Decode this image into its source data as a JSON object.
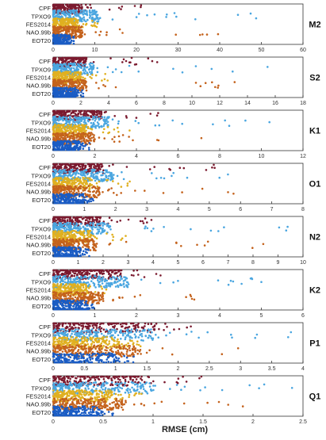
{
  "figure": {
    "xlabel": "RMSE (cm)"
  },
  "chart_data": [
    {
      "type": "scatter",
      "title": "M2",
      "xlim": [
        0,
        60
      ],
      "xticks": [
        0,
        10,
        20,
        30,
        40,
        50,
        60
      ],
      "categories": [
        "CPF",
        "TPXO9",
        "FES2014",
        "NAO.99b",
        "EOT20"
      ],
      "series": [
        {
          "name": "CPF",
          "color": "#7b1a2f",
          "core": [
            0,
            7
          ],
          "tail": [
            7,
            22
          ]
        },
        {
          "name": "TPXO9",
          "color": "#4aa6e0",
          "core": [
            0,
            11
          ],
          "tail": [
            11,
            51
          ]
        },
        {
          "name": "FES2014",
          "color": "#e0b020",
          "core": [
            0,
            6
          ],
          "tail": [
            6,
            12
          ]
        },
        {
          "name": "NAO.99b",
          "color": "#c4621c",
          "core": [
            0,
            7
          ],
          "tail": [
            7,
            41
          ]
        },
        {
          "name": "EOT20",
          "color": "#1a5cc4",
          "core": [
            0,
            4
          ],
          "tail": [
            4,
            5
          ]
        }
      ]
    },
    {
      "type": "scatter",
      "title": "S2",
      "xlim": [
        0,
        18
      ],
      "xticks": [
        0,
        2,
        4,
        6,
        8,
        10,
        12,
        14,
        16,
        18
      ],
      "categories": [
        "CPF",
        "TPXO9",
        "FES2014",
        "NAO.99b",
        "EOT20"
      ],
      "series": [
        {
          "name": "CPF",
          "color": "#7b1a2f",
          "core": [
            0,
            2.4
          ],
          "tail": [
            2.4,
            9
          ]
        },
        {
          "name": "TPXO9",
          "color": "#4aa6e0",
          "core": [
            0,
            3
          ],
          "tail": [
            3,
            15.5
          ]
        },
        {
          "name": "FES2014",
          "color": "#e0b020",
          "core": [
            0,
            2
          ],
          "tail": [
            2,
            4
          ]
        },
        {
          "name": "NAO.99b",
          "color": "#c4621c",
          "core": [
            0,
            2.4
          ],
          "tail": [
            2.4,
            14
          ]
        },
        {
          "name": "EOT20",
          "color": "#1a5cc4",
          "core": [
            0,
            1.7
          ],
          "tail": [
            1.7,
            2.2
          ]
        }
      ]
    },
    {
      "type": "scatter",
      "title": "K1",
      "xlim": [
        0,
        12
      ],
      "xticks": [
        0,
        2,
        4,
        6,
        8,
        10,
        12
      ],
      "categories": [
        "CPF",
        "TPXO9",
        "FES2014",
        "NAO.99b",
        "EOT20"
      ],
      "series": [
        {
          "name": "CPF",
          "color": "#7b1a2f",
          "core": [
            0,
            2.3
          ],
          "tail": [
            2.3,
            6
          ]
        },
        {
          "name": "TPXO9",
          "color": "#4aa6e0",
          "core": [
            0,
            2.7
          ],
          "tail": [
            2.7,
            10.5
          ]
        },
        {
          "name": "FES2014",
          "color": "#e0b020",
          "core": [
            0,
            1.6
          ],
          "tail": [
            1.6,
            4
          ]
        },
        {
          "name": "NAO.99b",
          "color": "#c4621c",
          "core": [
            0,
            2
          ],
          "tail": [
            2,
            8
          ]
        },
        {
          "name": "EOT20",
          "color": "#1a5cc4",
          "core": [
            0,
            1.3
          ],
          "tail": [
            1.3,
            1.8
          ]
        }
      ]
    },
    {
      "type": "scatter",
      "title": "O1",
      "xlim": [
        0,
        8
      ],
      "xticks": [
        0,
        1,
        2,
        3,
        4,
        5,
        6,
        7,
        8
      ],
      "categories": [
        "CPF",
        "TPXO9",
        "FES2014",
        "NAO.99b",
        "EOT20"
      ],
      "series": [
        {
          "name": "CPF",
          "color": "#7b1a2f",
          "core": [
            0,
            1.6
          ],
          "tail": [
            1.6,
            5.2
          ]
        },
        {
          "name": "TPXO9",
          "color": "#4aa6e0",
          "core": [
            0,
            1.9
          ],
          "tail": [
            1.9,
            7.6
          ]
        },
        {
          "name": "FES2014",
          "color": "#e0b020",
          "core": [
            0,
            1.2
          ],
          "tail": [
            1.2,
            2.5
          ]
        },
        {
          "name": "NAO.99b",
          "color": "#c4621c",
          "core": [
            0,
            1.5
          ],
          "tail": [
            1.5,
            6
          ]
        },
        {
          "name": "EOT20",
          "color": "#1a5cc4",
          "core": [
            0,
            1
          ],
          "tail": [
            1,
            1.3
          ]
        }
      ]
    },
    {
      "type": "scatter",
      "title": "N2",
      "xlim": [
        0,
        10
      ],
      "xticks": [
        0,
        1,
        2,
        3,
        4,
        5,
        6,
        7,
        8,
        9,
        10
      ],
      "categories": [
        "CPF",
        "TPXO9",
        "FES2014",
        "NAO.99b",
        "EOT20"
      ],
      "series": [
        {
          "name": "CPF",
          "color": "#7b1a2f",
          "core": [
            0,
            1.9
          ],
          "tail": [
            1.9,
            4.5
          ]
        },
        {
          "name": "TPXO9",
          "color": "#4aa6e0",
          "core": [
            0,
            2.3
          ],
          "tail": [
            2.3,
            9.7
          ]
        },
        {
          "name": "FES2014",
          "color": "#e0b020",
          "core": [
            0,
            1.5
          ],
          "tail": [
            1.5,
            3
          ]
        },
        {
          "name": "NAO.99b",
          "color": "#c4621c",
          "core": [
            0,
            1.7
          ],
          "tail": [
            1.7,
            9
          ]
        },
        {
          "name": "EOT20",
          "color": "#1a5cc4",
          "core": [
            0,
            1.1
          ],
          "tail": [
            1.1,
            1.5
          ]
        }
      ]
    },
    {
      "type": "scatter",
      "title": "K2",
      "xlim": [
        0,
        6
      ],
      "xticks": [
        0,
        1,
        2,
        3,
        4,
        5,
        6
      ],
      "categories": [
        "CPF",
        "TPXO9",
        "FES2014",
        "NAO.99b",
        "EOT20"
      ],
      "series": [
        {
          "name": "CPF",
          "color": "#7b1a2f",
          "core": [
            0,
            1.6
          ],
          "tail": [
            1.6,
            2.6
          ]
        },
        {
          "name": "TPXO9",
          "color": "#4aa6e0",
          "core": [
            0,
            1.8
          ],
          "tail": [
            1.8,
            5.2
          ]
        },
        {
          "name": "FES2014",
          "color": "#e0b020",
          "core": [
            0,
            0.8
          ],
          "tail": [
            0.8,
            1.3
          ]
        },
        {
          "name": "NAO.99b",
          "color": "#c4621c",
          "core": [
            0,
            1.2
          ],
          "tail": [
            1.2,
            3.5
          ]
        },
        {
          "name": "EOT20",
          "color": "#1a5cc4",
          "core": [
            0,
            0.8
          ],
          "tail": [
            0.8,
            1
          ]
        }
      ]
    },
    {
      "type": "scatter",
      "title": "P1",
      "xlim": [
        0,
        4
      ],
      "xticks": [
        0,
        0.5,
        1,
        1.5,
        2,
        2.5,
        3,
        3.5,
        4
      ],
      "categories": [
        "CPF",
        "TPXO9",
        "FES2014",
        "NAO.99b",
        "EOT20"
      ],
      "series": [
        {
          "name": "CPF",
          "color": "#7b1a2f",
          "core": [
            0,
            1.6
          ],
          "tail": [
            1.6,
            2.3
          ]
        },
        {
          "name": "TPXO9",
          "color": "#4aa6e0",
          "core": [
            0,
            1.6
          ],
          "tail": [
            1.6,
            3.9
          ]
        },
        {
          "name": "FES2014",
          "color": "#e0b020",
          "core": [
            0,
            1.1
          ],
          "tail": [
            1.1,
            1.4
          ]
        },
        {
          "name": "NAO.99b",
          "color": "#c4621c",
          "core": [
            0,
            1.3
          ],
          "tail": [
            1.3,
            3.2
          ]
        },
        {
          "name": "EOT20",
          "color": "#1a5cc4",
          "core": [
            0,
            1
          ],
          "tail": [
            1,
            1.3
          ]
        }
      ]
    },
    {
      "type": "scatter",
      "title": "Q1",
      "xlim": [
        0,
        2.5
      ],
      "xticks": [
        0,
        0.5,
        1,
        1.5,
        2,
        2.5
      ],
      "categories": [
        "CPF",
        "TPXO9",
        "FES2014",
        "NAO.99b",
        "EOT20"
      ],
      "series": [
        {
          "name": "CPF",
          "color": "#7b1a2f",
          "core": [
            0,
            0.9
          ],
          "tail": [
            0.9,
            1.6
          ]
        },
        {
          "name": "TPXO9",
          "color": "#4aa6e0",
          "core": [
            0,
            1
          ],
          "tail": [
            1,
            2.4
          ]
        },
        {
          "name": "FES2014",
          "color": "#e0b020",
          "core": [
            0,
            0.6
          ],
          "tail": [
            0.6,
            0.9
          ]
        },
        {
          "name": "NAO.99b",
          "color": "#c4621c",
          "core": [
            0,
            0.7
          ],
          "tail": [
            0.7,
            1.9
          ]
        },
        {
          "name": "EOT20",
          "color": "#1a5cc4",
          "core": [
            0,
            0.45
          ],
          "tail": [
            0.45,
            0.6
          ]
        }
      ]
    }
  ]
}
